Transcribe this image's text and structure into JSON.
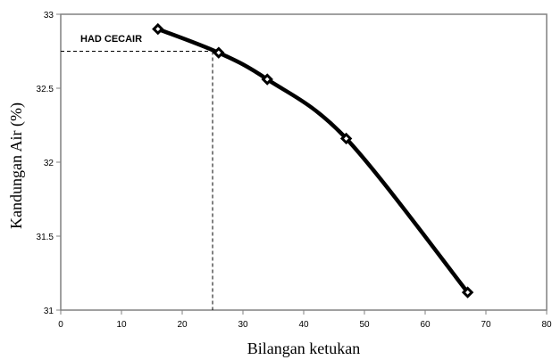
{
  "chart_data": {
    "type": "line",
    "title": "",
    "xlabel": "Bilangan ketukan",
    "ylabel": "Kandungan Air (%)",
    "xlim": [
      0,
      80
    ],
    "ylim": [
      31,
      33
    ],
    "x_ticks": [
      "0",
      "10",
      "20",
      "30",
      "40",
      "50",
      "60",
      "70",
      "80"
    ],
    "y_ticks": [
      "31",
      "31.5",
      "32",
      "32.5",
      "33"
    ],
    "grid": false,
    "legend": "none",
    "series": [
      {
        "x": [
          16,
          26,
          34,
          47,
          67
        ],
        "y": [
          32.9,
          32.74,
          32.56,
          32.16,
          31.12
        ],
        "color": "#000000",
        "marker": "diamond"
      }
    ],
    "annotations": [
      {
        "text": "HAD CECAIR",
        "x": 25,
        "y": 32.75,
        "style": "dashed-guide"
      }
    ]
  }
}
